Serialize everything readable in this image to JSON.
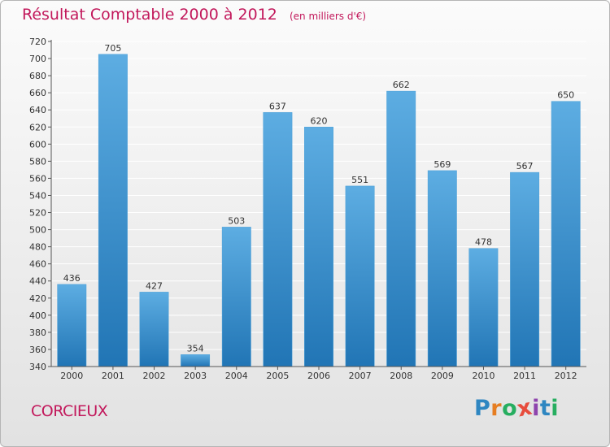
{
  "header": {
    "title": "Résultat Comptable 2000 à 2012",
    "subtitle": "(en milliers d'€)"
  },
  "footer": {
    "commune": "CORCIEUX",
    "brand": "Proxiti",
    "brand_letters": [
      "P",
      "r",
      "o",
      "x",
      "i",
      "t",
      "i"
    ],
    "brand_colors": [
      "#2e86c1",
      "#e67e22",
      "#27ae60",
      "#e74c3c",
      "#8e44ad",
      "#2e86c1",
      "#27ae60"
    ]
  },
  "colors": {
    "bar_light": "#5dade2",
    "bar_dark": "#2175b5",
    "grid": "#ffffff",
    "text": "#333333",
    "title": "#c2185b"
  },
  "chart_data": {
    "type": "bar",
    "title": "Résultat Comptable 2000 à 2012",
    "subtitle": "(en milliers d'€)",
    "xlabel": "",
    "ylabel": "",
    "categories": [
      "2000",
      "2001",
      "2002",
      "2003",
      "2004",
      "2005",
      "2006",
      "2007",
      "2008",
      "2009",
      "2010",
      "2011",
      "2012"
    ],
    "values": [
      436,
      705,
      427,
      354,
      503,
      637,
      620,
      551,
      662,
      569,
      478,
      567,
      650
    ],
    "ylim": [
      340,
      720
    ],
    "ytick_step": 20,
    "grid": true
  }
}
